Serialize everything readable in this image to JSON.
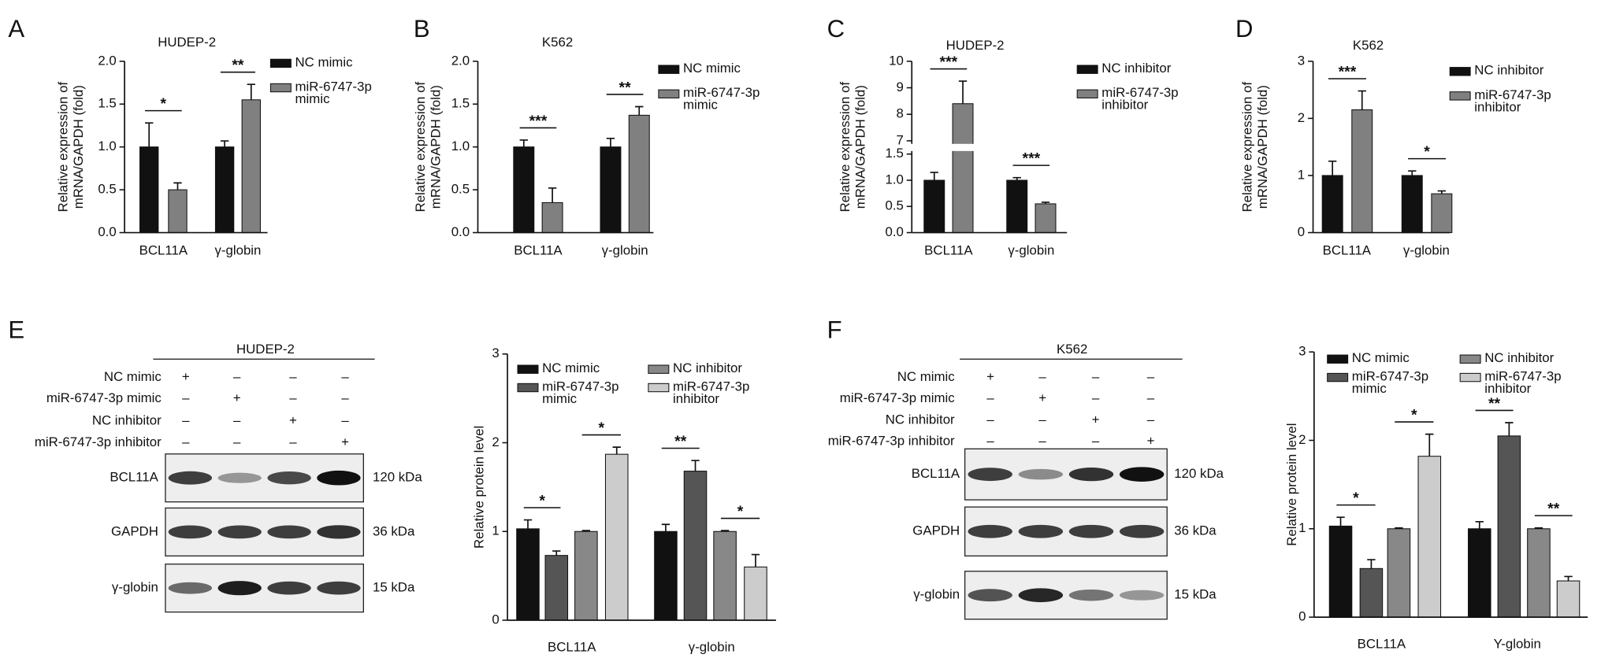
{
  "chart_data": [
    {
      "type": "bar",
      "panel": "A",
      "title": "HUDEP-2",
      "ylabel": [
        "Relative expression of",
        "mRNA/GAPDH (fold)"
      ],
      "categories": [
        "BCL11A",
        "γ-globin"
      ],
      "series": [
        {
          "name": "NC mimic",
          "color": "#111111",
          "values": [
            1.0,
            1.0
          ],
          "errors": [
            0.28,
            0.07
          ]
        },
        {
          "name": "miR-6747-3p mimic",
          "color": "#808080",
          "values": [
            0.5,
            1.55
          ],
          "errors": [
            0.08,
            0.18
          ],
          "significance": [
            "*",
            "**"
          ]
        }
      ],
      "ylim": [
        0,
        2
      ],
      "yticks": [
        {
          "value": 0,
          "label": "0.0"
        },
        {
          "value": 0.5,
          "label": "0.5"
        },
        {
          "value": 1,
          "label": "1.0"
        },
        {
          "value": 1.5,
          "label": "1.5"
        },
        {
          "value": 2,
          "label": "2.0"
        }
      ]
    },
    {
      "type": "bar",
      "panel": "B",
      "title": "K562",
      "ylabel": [
        "Relative expression of",
        "mRNA/GAPDH (fold)"
      ],
      "categories": [
        "BCL11A",
        "γ-globin"
      ],
      "series": [
        {
          "name": "NC mimic",
          "color": "#111111",
          "values": [
            1.0,
            1.0
          ],
          "errors": [
            0.08,
            0.1
          ]
        },
        {
          "name": "miR-6747-3p mimic",
          "color": "#808080",
          "values": [
            0.35,
            1.37
          ],
          "errors": [
            0.17,
            0.1
          ],
          "significance": [
            "***",
            "**"
          ]
        }
      ],
      "ylim": [
        0,
        2
      ],
      "yticks": [
        {
          "value": 0,
          "label": "0.0"
        },
        {
          "value": 0.5,
          "label": "0.5"
        },
        {
          "value": 1,
          "label": "1.0"
        },
        {
          "value": 1.5,
          "label": "1.5"
        },
        {
          "value": 2,
          "label": "2.0"
        }
      ]
    },
    {
      "type": "bar",
      "panel": "C",
      "title": "HUDEP-2",
      "ylabel": [
        "Relative expression of",
        "mRNA/GAPDH (fold)"
      ],
      "categories": [
        "BCL11A",
        "γ-globin"
      ],
      "series": [
        {
          "name": "NC inhibitor",
          "color": "#111111",
          "values": [
            1.0,
            1.0
          ],
          "errors": [
            0.15,
            0.05
          ]
        },
        {
          "name": "miR-6747-3p inhibitor",
          "color": "#808080",
          "values": [
            8.4,
            0.55
          ],
          "errors": [
            0.85,
            0.03
          ],
          "significance": [
            "***",
            "***"
          ]
        }
      ],
      "ylim": [
        0,
        10
      ],
      "ybreak": [
        1.5,
        7
      ],
      "yticks": [
        {
          "value": 0,
          "label": "0.0"
        },
        {
          "value": 0.5,
          "label": "0.5"
        },
        {
          "value": 1,
          "label": "1.0"
        },
        {
          "value": 1.5,
          "label": "1.5"
        },
        7,
        8,
        9,
        10
      ]
    },
    {
      "type": "bar",
      "panel": "D",
      "title": "K562",
      "ylabel": [
        "Relative expression of",
        "mRNA/GAPDH (fold)"
      ],
      "categories": [
        "BCL11A",
        "γ-globin"
      ],
      "series": [
        {
          "name": "NC inhibitor",
          "color": "#111111",
          "values": [
            1.0,
            1.0
          ],
          "errors": [
            0.25,
            0.08
          ]
        },
        {
          "name": "miR-6747-3p inhibitor",
          "color": "#808080",
          "values": [
            2.15,
            0.68
          ],
          "errors": [
            0.33,
            0.05
          ],
          "significance": [
            "***",
            "*"
          ]
        }
      ],
      "ylim": [
        0,
        3
      ],
      "yticks": [
        0,
        1,
        2,
        3
      ]
    },
    {
      "type": "bar",
      "panel": "E",
      "ylabel": [
        "Relative protein level"
      ],
      "categories": [
        "BCL11A",
        "γ-globin"
      ],
      "series": [
        {
          "name": "NC mimic",
          "color": "#111111",
          "values": [
            1.03,
            1.0
          ],
          "errors": [
            0.1,
            0.08
          ]
        },
        {
          "name": "miR-6747-3p mimic",
          "color": "#555555",
          "values": [
            0.73,
            1.68
          ],
          "errors": [
            0.05,
            0.12
          ],
          "significance": [
            "*",
            "**"
          ]
        },
        {
          "name": "NC inhibitor",
          "color": "#888888",
          "values": [
            1.0,
            1.0
          ],
          "errors": [
            0.01,
            0.01
          ]
        },
        {
          "name": "miR-6747-3p inhibitor",
          "color": "#cccccc",
          "values": [
            1.87,
            0.6
          ],
          "errors": [
            0.08,
            0.14
          ],
          "significance": [
            "*",
            "*"
          ]
        }
      ],
      "ylim": [
        0,
        3
      ],
      "yticks": [
        0,
        1,
        2,
        3
      ]
    },
    {
      "type": "bar",
      "panel": "F",
      "ylabel": [
        "Relative protein level"
      ],
      "categories": [
        "BCL11A",
        "Y-globin"
      ],
      "series": [
        {
          "name": "NC mimic",
          "color": "#111111",
          "values": [
            1.03,
            1.0
          ],
          "errors": [
            0.1,
            0.08
          ]
        },
        {
          "name": "miR-6747-3p mimic",
          "color": "#555555",
          "values": [
            0.55,
            2.05
          ],
          "errors": [
            0.1,
            0.15
          ],
          "significance": [
            "*",
            "**"
          ]
        },
        {
          "name": "NC inhibitor",
          "color": "#888888",
          "values": [
            1.0,
            1.0
          ],
          "errors": [
            0.01,
            0.01
          ]
        },
        {
          "name": "miR-6747-3p inhibitor",
          "color": "#cccccc",
          "values": [
            1.82,
            0.41
          ],
          "errors": [
            0.25,
            0.05
          ],
          "significance": [
            "*",
            "**"
          ]
        }
      ],
      "ylim": [
        0,
        3
      ],
      "yticks": [
        0,
        1,
        2,
        3
      ]
    }
  ],
  "blots": [
    {
      "title": "HUDEP-2",
      "conditions": [
        "NC mimic",
        "miR-6747-3p mimic",
        "NC inhibitor",
        "miR-6747-3p inhibitor"
      ],
      "signs": [
        [
          "+",
          "–",
          "–",
          "–"
        ],
        [
          "–",
          "+",
          "–",
          "–"
        ],
        [
          "–",
          "–",
          "+",
          "–"
        ],
        [
          "–",
          "–",
          "–",
          "+"
        ]
      ],
      "bands": [
        {
          "label": "BCL11A",
          "size": "120 kDa"
        },
        {
          "label": "GAPDH",
          "size": "36 kDa"
        },
        {
          "label": "γ-globin",
          "size": "15 kDa"
        }
      ]
    },
    {
      "title": "K562",
      "conditions": [
        "NC mimic",
        "miR-6747-3p mimic",
        "NC inhibitor",
        "miR-6747-3p inhibitor"
      ],
      "signs": [
        [
          "+",
          "–",
          "–",
          "–"
        ],
        [
          "–",
          "+",
          "–",
          "–"
        ],
        [
          "–",
          "–",
          "+",
          "–"
        ],
        [
          "–",
          "–",
          "–",
          "+"
        ]
      ],
      "bands": [
        {
          "label": "BCL11A",
          "size": "120 kDa"
        },
        {
          "label": "GAPDH",
          "size": "36 kDa"
        },
        {
          "label": "γ-globin",
          "size": "15 kDa"
        }
      ]
    }
  ]
}
